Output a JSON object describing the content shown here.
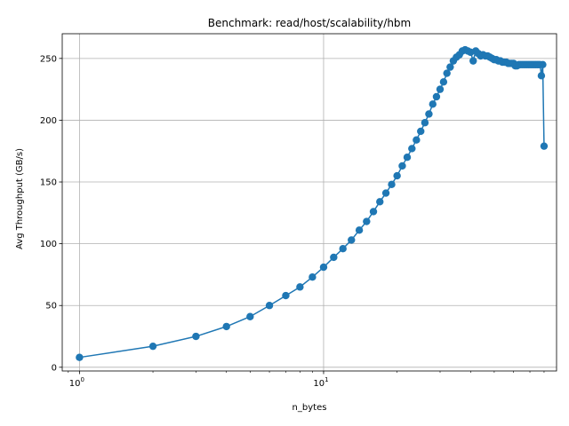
{
  "chart_data": {
    "type": "line",
    "title": "Benchmark: read/host/scalability/hbm",
    "xlabel": "n_bytes",
    "ylabel": "Avg Throughput (GB/s)",
    "xscale": "log",
    "xlim": [
      0.85,
      90
    ],
    "ylim": [
      -3,
      270
    ],
    "grid": true,
    "legend": "none",
    "color": "#1f77b4",
    "x_ticks": [
      {
        "value": 1,
        "label": "10",
        "exp": "0"
      },
      {
        "value": 10,
        "label": "10",
        "exp": "1"
      }
    ],
    "y_ticks": [
      0,
      50,
      100,
      150,
      200,
      250
    ],
    "series": [
      {
        "x": [
          1,
          2,
          3,
          4,
          5,
          6,
          7,
          8,
          9,
          10,
          11,
          12,
          13,
          14,
          15,
          16,
          17,
          18,
          19,
          20,
          21,
          22,
          23,
          24,
          25,
          26,
          27,
          28,
          29,
          30,
          31,
          32,
          33,
          34,
          35,
          36,
          37,
          38,
          39,
          40,
          41,
          42,
          43,
          44,
          45,
          46,
          47,
          48,
          49,
          50,
          51,
          52,
          53,
          54,
          55,
          56,
          57,
          58,
          59,
          60,
          61,
          62,
          63,
          64,
          65,
          66,
          67,
          68,
          69,
          70,
          71,
          72,
          73,
          74,
          75,
          76,
          77,
          78,
          79,
          80
        ],
        "y": [
          8,
          17,
          25,
          33,
          41,
          50,
          58,
          65,
          73,
          81,
          89,
          96,
          103,
          111,
          118,
          126,
          134,
          141,
          148,
          155,
          163,
          170,
          177,
          184,
          191,
          198,
          205,
          213,
          219,
          225,
          231,
          238,
          243,
          248,
          251,
          253,
          256,
          257,
          256,
          255,
          248,
          256,
          254,
          252,
          253,
          252,
          252,
          251,
          250,
          249,
          249,
          248,
          248,
          247,
          247,
          247,
          246,
          246,
          246,
          246,
          244,
          244,
          245,
          245,
          245,
          245,
          245,
          245,
          245,
          245,
          245,
          245,
          245,
          245,
          245,
          245,
          245,
          236,
          245,
          179
        ]
      }
    ]
  }
}
